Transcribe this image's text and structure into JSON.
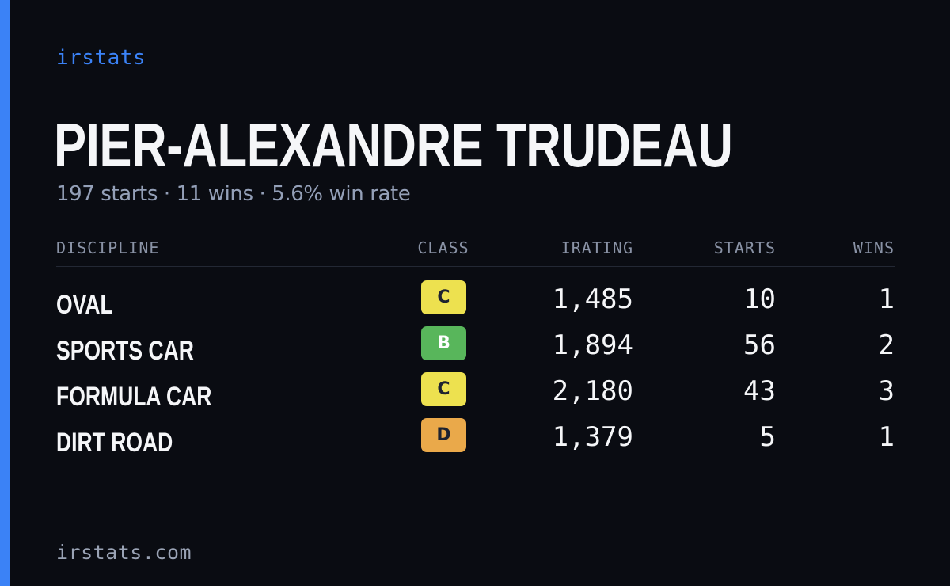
{
  "brand": "irstats",
  "driver": {
    "name": "PIER-ALEXANDRE TRUDEAU",
    "summary": "197 starts · 11 wins · 5.6% win rate"
  },
  "table": {
    "headers": {
      "discipline": "DISCIPLINE",
      "class": "CLASS",
      "irating": "IRATING",
      "starts": "STARTS",
      "wins": "WINS"
    },
    "rows": [
      {
        "discipline": "OVAL",
        "class": "C",
        "class_color": "#ede14f",
        "irating": "1,485",
        "starts": "10",
        "wins": "1"
      },
      {
        "discipline": "SPORTS CAR",
        "class": "B",
        "class_color": "#58b65b",
        "irating": "1,894",
        "starts": "56",
        "wins": "2"
      },
      {
        "discipline": "FORMULA CAR",
        "class": "C",
        "class_color": "#ede14f",
        "irating": "2,180",
        "starts": "43",
        "wins": "3"
      },
      {
        "discipline": "DIRT ROAD",
        "class": "D",
        "class_color": "#eaa94a",
        "irating": "1,379",
        "starts": "5",
        "wins": "1"
      }
    ]
  },
  "footer": "irstats.com",
  "colors": {
    "background": "#0a0c12",
    "accent": "#3b82f6",
    "muted_text": "#94a0b8"
  }
}
